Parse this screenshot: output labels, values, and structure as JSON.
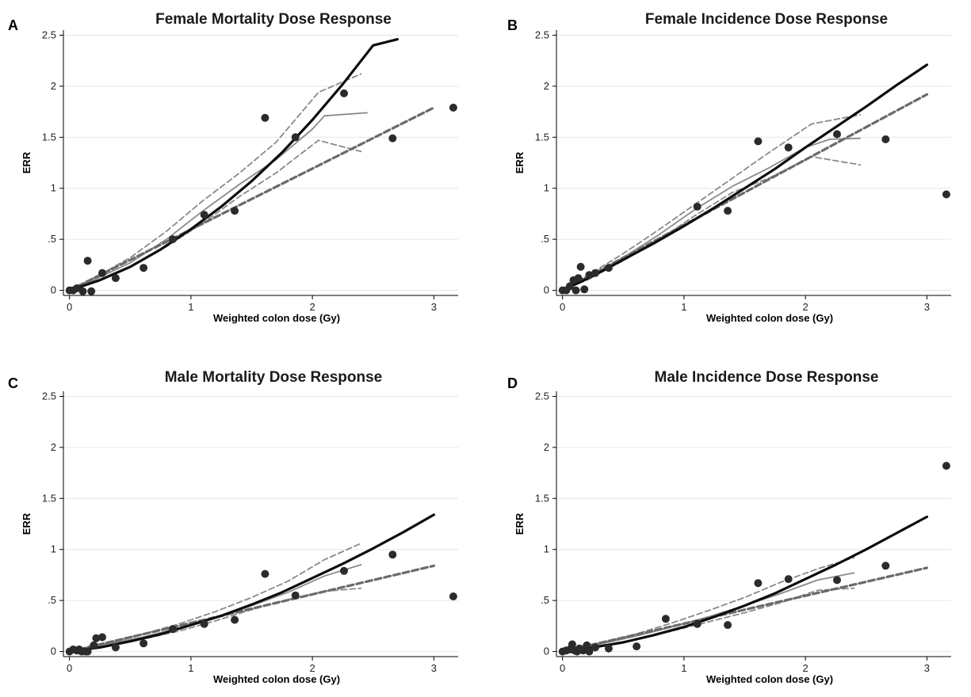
{
  "chart_data": [
    {
      "panel_label": "A",
      "title": "Female Mortality Dose Response",
      "type": "scatter",
      "xlabel": "Weighted colon dose (Gy)",
      "ylabel": "ERR",
      "xlim": [
        -0.05,
        3.2
      ],
      "ylim": [
        -0.05,
        2.55
      ],
      "xticks": [
        "0",
        "1",
        "2",
        "3"
      ],
      "yticks": [
        "0",
        ".5",
        "1",
        "1.5",
        "2",
        "2.5"
      ],
      "grid": true,
      "points": [
        [
          0.0,
          0.0
        ],
        [
          0.03,
          0.0
        ],
        [
          0.06,
          0.02
        ],
        [
          0.11,
          -0.01
        ],
        [
          0.15,
          0.29
        ],
        [
          0.18,
          -0.01
        ],
        [
          0.27,
          0.17
        ],
        [
          0.38,
          0.12
        ],
        [
          0.61,
          0.22
        ],
        [
          0.85,
          0.5
        ],
        [
          1.11,
          0.74
        ],
        [
          1.36,
          0.78
        ],
        [
          1.61,
          1.69
        ],
        [
          1.86,
          1.5
        ],
        [
          2.26,
          1.93
        ],
        [
          2.66,
          1.49
        ],
        [
          3.16,
          1.79
        ]
      ],
      "series": [
        {
          "style": "fit",
          "x": [
            0,
            0.25,
            0.5,
            0.75,
            1.0,
            1.25,
            1.5,
            1.75,
            2.0,
            2.25,
            2.5,
            2.7
          ],
          "y": [
            0,
            0.1,
            0.23,
            0.4,
            0.6,
            0.82,
            1.07,
            1.35,
            1.67,
            2.02,
            2.4,
            2.46
          ]
        },
        {
          "style": "linear",
          "x": [
            0,
            3.0
          ],
          "y": [
            0,
            1.79
          ]
        },
        {
          "style": "smooth",
          "x": [
            0,
            0.2,
            0.5,
            0.8,
            1.1,
            1.4,
            1.7,
            2.0,
            2.1,
            2.45
          ],
          "y": [
            0,
            0.1,
            0.27,
            0.5,
            0.78,
            1.04,
            1.28,
            1.58,
            1.71,
            1.74
          ]
        },
        {
          "style": "ci",
          "x": [
            0,
            0.2,
            0.5,
            0.8,
            1.1,
            1.4,
            1.7,
            2.05,
            2.4
          ],
          "y": [
            0,
            0.12,
            0.32,
            0.58,
            0.88,
            1.15,
            1.45,
            1.94,
            2.12
          ]
        },
        {
          "style": "ci",
          "x": [
            0,
            0.2,
            0.5,
            0.8,
            1.1,
            1.4,
            1.7,
            2.05,
            2.4
          ],
          "y": [
            0,
            0.08,
            0.23,
            0.43,
            0.66,
            0.92,
            1.15,
            1.47,
            1.36
          ]
        }
      ]
    },
    {
      "panel_label": "B",
      "title": "Female Incidence Dose Response",
      "type": "scatter",
      "xlabel": "Weighted colon dose (Gy)",
      "ylabel": "ERR",
      "xlim": [
        -0.05,
        3.2
      ],
      "ylim": [
        -0.05,
        2.55
      ],
      "xticks": [
        "0",
        "1",
        "2",
        "3"
      ],
      "yticks": [
        "0",
        ".5",
        "1",
        "1.5",
        "2",
        "2.5"
      ],
      "grid": true,
      "points": [
        [
          0.0,
          0.0
        ],
        [
          0.03,
          0.0
        ],
        [
          0.06,
          0.04
        ],
        [
          0.09,
          0.1
        ],
        [
          0.11,
          0.0
        ],
        [
          0.13,
          0.12
        ],
        [
          0.15,
          0.23
        ],
        [
          0.18,
          0.01
        ],
        [
          0.22,
          0.15
        ],
        [
          0.27,
          0.17
        ],
        [
          0.38,
          0.22
        ],
        [
          1.11,
          0.82
        ],
        [
          1.36,
          0.78
        ],
        [
          1.61,
          1.46
        ],
        [
          1.86,
          1.4
        ],
        [
          2.26,
          1.53
        ],
        [
          2.66,
          1.48
        ],
        [
          3.16,
          0.94
        ]
      ],
      "series": [
        {
          "style": "fit",
          "x": [
            0,
            0.25,
            0.5,
            0.75,
            1.0,
            1.25,
            1.5,
            1.75,
            2.0,
            2.25,
            2.5,
            2.75,
            3.0
          ],
          "y": [
            0,
            0.14,
            0.3,
            0.46,
            0.63,
            0.81,
            1.0,
            1.19,
            1.4,
            1.6,
            1.8,
            2.01,
            2.21
          ]
        },
        {
          "style": "linear",
          "x": [
            0,
            3.0
          ],
          "y": [
            0,
            1.92
          ]
        },
        {
          "style": "smooth",
          "x": [
            0,
            0.2,
            0.5,
            0.8,
            1.1,
            1.4,
            1.7,
            2.0,
            2.2,
            2.45
          ],
          "y": [
            0,
            0.12,
            0.32,
            0.55,
            0.8,
            1.02,
            1.2,
            1.4,
            1.48,
            1.49
          ]
        },
        {
          "style": "ci",
          "x": [
            0,
            0.2,
            0.5,
            0.8,
            1.1,
            1.4,
            1.7,
            2.05,
            2.45
          ],
          "y": [
            0,
            0.14,
            0.36,
            0.6,
            0.85,
            1.1,
            1.35,
            1.63,
            1.72
          ]
        },
        {
          "style": "ci",
          "x": [
            0,
            0.2,
            0.5,
            0.8,
            1.1,
            1.4,
            1.7,
            2.05,
            2.45
          ],
          "y": [
            0,
            0.1,
            0.29,
            0.5,
            0.74,
            0.96,
            1.1,
            1.31,
            1.23
          ]
        }
      ]
    },
    {
      "panel_label": "C",
      "title": "Male Mortality Dose Response",
      "type": "scatter",
      "xlabel": "Weighted colon dose (Gy)",
      "ylabel": "ERR",
      "xlim": [
        -0.05,
        3.2
      ],
      "ylim": [
        -0.05,
        2.55
      ],
      "xticks": [
        "0",
        "1",
        "2",
        "3"
      ],
      "yticks": [
        "0",
        ".5",
        "1",
        "1.5",
        "2",
        "2.5"
      ],
      "grid": true,
      "points": [
        [
          0.0,
          0.0
        ],
        [
          0.03,
          0.02
        ],
        [
          0.06,
          0.01
        ],
        [
          0.08,
          0.02
        ],
        [
          0.1,
          0.0
        ],
        [
          0.13,
          0.0
        ],
        [
          0.15,
          0.0
        ],
        [
          0.2,
          0.06
        ],
        [
          0.22,
          0.13
        ],
        [
          0.27,
          0.14
        ],
        [
          0.38,
          0.04
        ],
        [
          0.61,
          0.08
        ],
        [
          0.85,
          0.22
        ],
        [
          1.11,
          0.27
        ],
        [
          1.36,
          0.31
        ],
        [
          1.61,
          0.76
        ],
        [
          1.86,
          0.55
        ],
        [
          2.26,
          0.79
        ],
        [
          2.66,
          0.95
        ],
        [
          3.16,
          0.54
        ]
      ],
      "series": [
        {
          "style": "fit",
          "x": [
            0,
            0.25,
            0.5,
            0.75,
            1.0,
            1.25,
            1.5,
            1.75,
            2.0,
            2.25,
            2.5,
            2.75,
            3.0
          ],
          "y": [
            0,
            0.04,
            0.1,
            0.17,
            0.26,
            0.35,
            0.46,
            0.58,
            0.72,
            0.86,
            1.01,
            1.17,
            1.34
          ]
        },
        {
          "style": "linear",
          "x": [
            0,
            3.0
          ],
          "y": [
            0,
            0.84
          ]
        },
        {
          "style": "smooth",
          "x": [
            0,
            0.3,
            0.6,
            0.9,
            1.2,
            1.5,
            1.8,
            2.1,
            2.4
          ],
          "y": [
            0,
            0.07,
            0.14,
            0.23,
            0.33,
            0.45,
            0.58,
            0.74,
            0.85
          ]
        },
        {
          "style": "ci",
          "x": [
            0,
            0.3,
            0.6,
            0.9,
            1.2,
            1.5,
            1.8,
            2.1,
            2.4
          ],
          "y": [
            0,
            0.08,
            0.17,
            0.27,
            0.39,
            0.53,
            0.69,
            0.9,
            1.06
          ]
        },
        {
          "style": "ci",
          "x": [
            0,
            0.3,
            0.6,
            0.9,
            1.2,
            1.5,
            1.8,
            2.1,
            2.4
          ],
          "y": [
            0,
            0.05,
            0.12,
            0.2,
            0.3,
            0.41,
            0.51,
            0.59,
            0.62
          ]
        }
      ]
    },
    {
      "panel_label": "D",
      "title": "Male Incidence Dose Response",
      "type": "scatter",
      "xlabel": "Weighted colon dose (Gy)",
      "ylabel": "ERR",
      "xlim": [
        -0.05,
        3.2
      ],
      "ylim": [
        -0.05,
        2.55
      ],
      "xticks": [
        "0",
        "1",
        "2",
        "3"
      ],
      "yticks": [
        "0",
        ".5",
        "1",
        "1.5",
        "2",
        "2.5"
      ],
      "grid": true,
      "points": [
        [
          0.0,
          0.0
        ],
        [
          0.03,
          0.01
        ],
        [
          0.06,
          0.02
        ],
        [
          0.08,
          0.07
        ],
        [
          0.1,
          0.01
        ],
        [
          0.12,
          0.0
        ],
        [
          0.14,
          0.03
        ],
        [
          0.17,
          0.01
        ],
        [
          0.2,
          0.06
        ],
        [
          0.22,
          0.0
        ],
        [
          0.27,
          0.04
        ],
        [
          0.38,
          0.03
        ],
        [
          0.61,
          0.05
        ],
        [
          0.85,
          0.32
        ],
        [
          1.11,
          0.27
        ],
        [
          1.36,
          0.26
        ],
        [
          1.61,
          0.67
        ],
        [
          1.86,
          0.71
        ],
        [
          2.26,
          0.7
        ],
        [
          2.66,
          0.84
        ],
        [
          3.16,
          1.82
        ]
      ],
      "series": [
        {
          "style": "fit",
          "x": [
            0,
            0.25,
            0.5,
            0.75,
            1.0,
            1.25,
            1.5,
            1.75,
            2.0,
            2.25,
            2.5,
            2.75,
            3.0
          ],
          "y": [
            0,
            0.04,
            0.09,
            0.16,
            0.24,
            0.34,
            0.45,
            0.57,
            0.71,
            0.85,
            1.0,
            1.16,
            1.32
          ]
        },
        {
          "style": "linear",
          "x": [
            0,
            3.0
          ],
          "y": [
            0,
            0.82
          ]
        },
        {
          "style": "smooth",
          "x": [
            0,
            0.3,
            0.6,
            0.9,
            1.2,
            1.5,
            1.8,
            2.1,
            2.4
          ],
          "y": [
            0,
            0.07,
            0.15,
            0.24,
            0.34,
            0.45,
            0.57,
            0.7,
            0.77
          ]
        },
        {
          "style": "ci",
          "x": [
            0,
            0.3,
            0.6,
            0.9,
            1.2,
            1.5,
            1.8,
            2.1,
            2.4
          ],
          "y": [
            0,
            0.08,
            0.17,
            0.28,
            0.4,
            0.53,
            0.68,
            0.81,
            0.92
          ]
        },
        {
          "style": "ci",
          "x": [
            0,
            0.3,
            0.6,
            0.9,
            1.2,
            1.5,
            1.8,
            2.1,
            2.4
          ],
          "y": [
            0,
            0.05,
            0.12,
            0.2,
            0.29,
            0.38,
            0.48,
            0.6,
            0.62
          ]
        }
      ]
    }
  ]
}
